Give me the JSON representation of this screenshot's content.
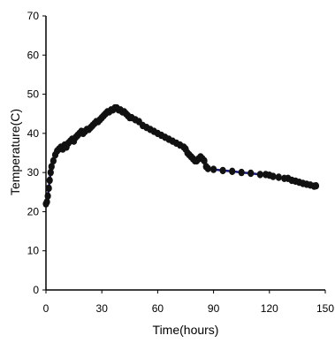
{
  "chart_data": {
    "type": "line",
    "title": "",
    "xlabel": "Time(hours)",
    "ylabel": "Temperature(C)",
    "xlim": [
      0,
      150
    ],
    "ylim": [
      0,
      70
    ],
    "x_ticks": [
      "0",
      "30",
      "60",
      "90",
      "120",
      "150"
    ],
    "y_ticks": [
      "0",
      "10",
      "20",
      "30",
      "40",
      "50",
      "60",
      "70"
    ],
    "grid": false,
    "legend": "none",
    "colors": {
      "line": "#1a1a7a",
      "marker": "#111111",
      "axis": "#000000"
    },
    "series": [
      {
        "points": [
          [
            0,
            22
          ],
          [
            0.5,
            22.5
          ],
          [
            1,
            24
          ],
          [
            1.5,
            26
          ],
          [
            2,
            28
          ],
          [
            2.5,
            30
          ],
          [
            3,
            31.5
          ],
          [
            4,
            33
          ],
          [
            5,
            34.5
          ],
          [
            6,
            35.5
          ],
          [
            7,
            36
          ],
          [
            8,
            36.5
          ],
          [
            9,
            36
          ],
          [
            10,
            37
          ],
          [
            11,
            36.5
          ],
          [
            12,
            37.5
          ],
          [
            13,
            38
          ],
          [
            14,
            38.5
          ],
          [
            15,
            38
          ],
          [
            16,
            39
          ],
          [
            17,
            39.5
          ],
          [
            18,
            40
          ],
          [
            19,
            40.5
          ],
          [
            20,
            40
          ],
          [
            21,
            40.5
          ],
          [
            22,
            41
          ],
          [
            23,
            41
          ],
          [
            24,
            41.5
          ],
          [
            25,
            42
          ],
          [
            26,
            42.5
          ],
          [
            27,
            43
          ],
          [
            28,
            43
          ],
          [
            29,
            43.5
          ],
          [
            30,
            44
          ],
          [
            31,
            44.5
          ],
          [
            32,
            45
          ],
          [
            33,
            45.5
          ],
          [
            34,
            45.5
          ],
          [
            35,
            46
          ],
          [
            36,
            46
          ],
          [
            37,
            46.5
          ],
          [
            38,
            46.5
          ],
          [
            39,
            46
          ],
          [
            40,
            46
          ],
          [
            41,
            45.5
          ],
          [
            42,
            45.5
          ],
          [
            43,
            45
          ],
          [
            44,
            44.5
          ],
          [
            45,
            44
          ],
          [
            46,
            44
          ],
          [
            48,
            43.5
          ],
          [
            50,
            43
          ],
          [
            52,
            42
          ],
          [
            54,
            41.5
          ],
          [
            56,
            41
          ],
          [
            58,
            40.5
          ],
          [
            60,
            40
          ],
          [
            62,
            39.5
          ],
          [
            64,
            39
          ],
          [
            66,
            38.5
          ],
          [
            68,
            38
          ],
          [
            70,
            37.5
          ],
          [
            72,
            37
          ],
          [
            74,
            36.5
          ],
          [
            75,
            36
          ],
          [
            76,
            35
          ],
          [
            77,
            34.5
          ],
          [
            78,
            34
          ],
          [
            79,
            33.5
          ],
          [
            80,
            33
          ],
          [
            81,
            33
          ],
          [
            82,
            33.5
          ],
          [
            83,
            34
          ],
          [
            84,
            33.5
          ],
          [
            85,
            33
          ],
          [
            86,
            31.5
          ],
          [
            87,
            31
          ],
          [
            90,
            30.8
          ],
          [
            95,
            30.5
          ],
          [
            100,
            30.3
          ],
          [
            105,
            30
          ],
          [
            110,
            29.8
          ],
          [
            115,
            29.5
          ],
          [
            118,
            29.5
          ],
          [
            120,
            29.3
          ],
          [
            122,
            29
          ],
          [
            125,
            28.8
          ],
          [
            128,
            28.5
          ],
          [
            130,
            28.5
          ],
          [
            132,
            28
          ],
          [
            134,
            27.8
          ],
          [
            136,
            27.5
          ],
          [
            138,
            27.2
          ],
          [
            140,
            27
          ],
          [
            142,
            26.8
          ],
          [
            144,
            26.5
          ],
          [
            145,
            26.6
          ]
        ]
      }
    ]
  }
}
